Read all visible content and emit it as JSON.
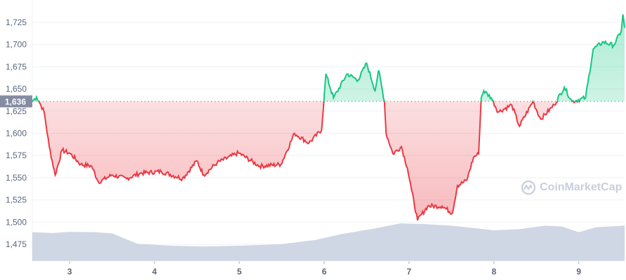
{
  "chart_data": {
    "type": "line",
    "title": "",
    "xlabel": "",
    "ylabel": "",
    "x_ticks": [
      "3",
      "4",
      "5",
      "6",
      "7",
      "8",
      "9"
    ],
    "x_tick_values": [
      3,
      4,
      5,
      6,
      7,
      8,
      9
    ],
    "xlim": [
      2.56,
      9.54
    ],
    "y_ticks": [
      "1,475",
      "1,500",
      "1,525",
      "1,550",
      "1,575",
      "1,600",
      "1,625",
      "1,650",
      "1,675",
      "1,700",
      "1,725"
    ],
    "y_tick_values": [
      1475,
      1500,
      1525,
      1550,
      1575,
      1600,
      1625,
      1650,
      1675,
      1700,
      1725
    ],
    "ylim": [
      1458,
      1745
    ],
    "grid": true,
    "reference": {
      "value": 1636,
      "label": "1,636"
    },
    "colors": {
      "above": "#16c784",
      "below": "#ea3943",
      "volume": "#cfd6e4",
      "grid": "#eff2f5",
      "badge": "#858ca2"
    },
    "series": [
      {
        "name": "price",
        "points": [
          [
            2.56,
            1636
          ],
          [
            2.61,
            1641
          ],
          [
            2.66,
            1632
          ],
          [
            2.7,
            1624
          ],
          [
            2.76,
            1585
          ],
          [
            2.83,
            1553
          ],
          [
            2.91,
            1581
          ],
          [
            3.01,
            1577
          ],
          [
            3.13,
            1565
          ],
          [
            3.26,
            1563
          ],
          [
            3.34,
            1545
          ],
          [
            3.5,
            1553
          ],
          [
            3.67,
            1549
          ],
          [
            3.83,
            1555
          ],
          [
            4.08,
            1557
          ],
          [
            4.33,
            1549
          ],
          [
            4.5,
            1569
          ],
          [
            4.58,
            1553
          ],
          [
            4.74,
            1567
          ],
          [
            4.99,
            1578
          ],
          [
            5.24,
            1563
          ],
          [
            5.49,
            1565
          ],
          [
            5.65,
            1600
          ],
          [
            5.82,
            1589
          ],
          [
            5.97,
            1604
          ],
          [
            6.02,
            1667
          ],
          [
            6.11,
            1640
          ],
          [
            6.27,
            1667
          ],
          [
            6.4,
            1660
          ],
          [
            6.5,
            1679
          ],
          [
            6.6,
            1648
          ],
          [
            6.64,
            1671
          ],
          [
            6.71,
            1636
          ],
          [
            6.73,
            1600
          ],
          [
            6.81,
            1577
          ],
          [
            6.91,
            1585
          ],
          [
            6.98,
            1561
          ],
          [
            7.03,
            1536
          ],
          [
            7.1,
            1502
          ],
          [
            7.22,
            1518
          ],
          [
            7.39,
            1518
          ],
          [
            7.51,
            1510
          ],
          [
            7.57,
            1541
          ],
          [
            7.68,
            1547
          ],
          [
            7.76,
            1573
          ],
          [
            7.82,
            1577
          ],
          [
            7.85,
            1640
          ],
          [
            7.88,
            1648
          ],
          [
            7.97,
            1640
          ],
          [
            8.05,
            1624
          ],
          [
            8.21,
            1632
          ],
          [
            8.3,
            1608
          ],
          [
            8.46,
            1636
          ],
          [
            8.55,
            1616
          ],
          [
            8.71,
            1632
          ],
          [
            8.83,
            1652
          ],
          [
            8.92,
            1636
          ],
          [
            9.08,
            1640
          ],
          [
            9.17,
            1695
          ],
          [
            9.29,
            1703
          ],
          [
            9.41,
            1699
          ],
          [
            9.5,
            1715
          ],
          [
            9.52,
            1734
          ],
          [
            9.54,
            1719
          ]
        ]
      },
      {
        "name": "volume",
        "points": [
          [
            2.56,
            0.75
          ],
          [
            2.8,
            0.73
          ],
          [
            3.0,
            0.76
          ],
          [
            3.3,
            0.75
          ],
          [
            3.5,
            0.72
          ],
          [
            3.8,
            0.45
          ],
          [
            4.2,
            0.4
          ],
          [
            4.6,
            0.38
          ],
          [
            5.0,
            0.4
          ],
          [
            5.5,
            0.44
          ],
          [
            5.9,
            0.55
          ],
          [
            6.2,
            0.7
          ],
          [
            6.6,
            0.85
          ],
          [
            6.9,
            0.98
          ],
          [
            7.2,
            0.96
          ],
          [
            7.5,
            0.92
          ],
          [
            7.8,
            0.85
          ],
          [
            8.0,
            0.8
          ],
          [
            8.3,
            0.83
          ],
          [
            8.6,
            0.92
          ],
          [
            8.8,
            0.9
          ],
          [
            9.0,
            0.75
          ],
          [
            9.2,
            0.88
          ],
          [
            9.54,
            0.92
          ]
        ]
      }
    ]
  },
  "watermark": "CoinMarketCap"
}
